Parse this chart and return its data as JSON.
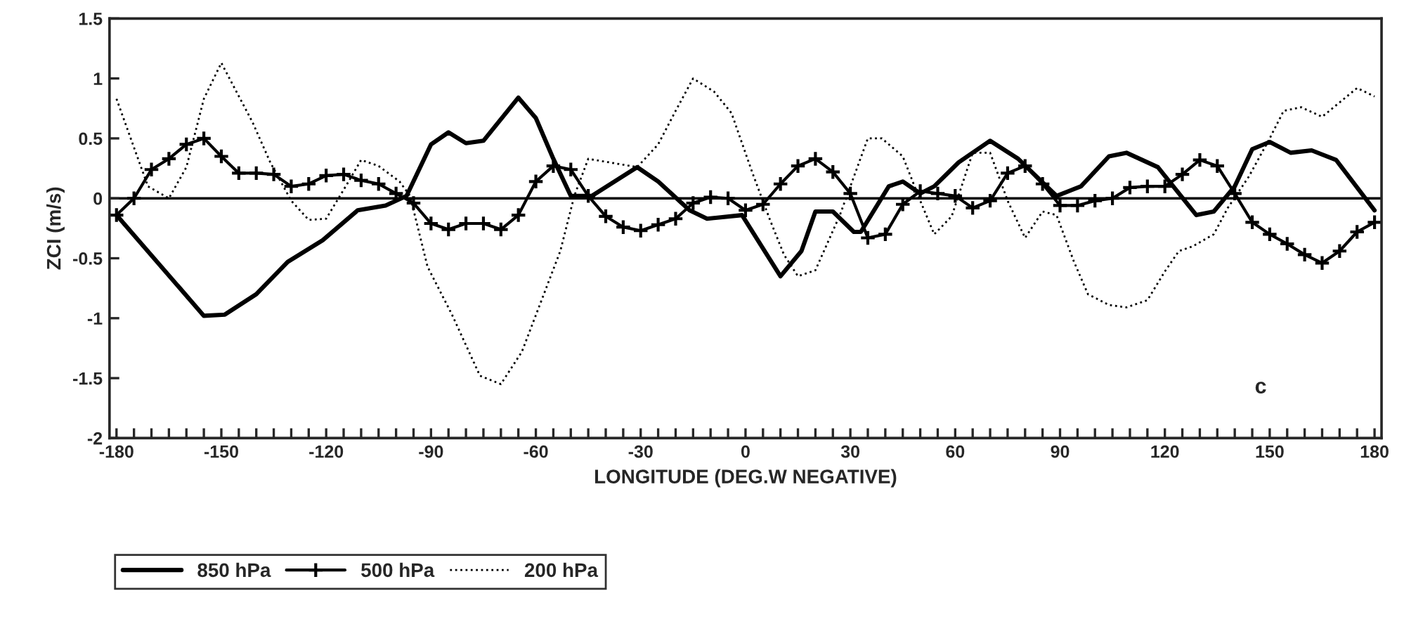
{
  "chart_data": {
    "type": "line",
    "xlabel": "LONGITUDE (DEG.W NEGATIVE)",
    "ylabel": "ZCI (m/s)",
    "xlim": [
      -182,
      182
    ],
    "ylim": [
      -2,
      1.5
    ],
    "xticks": [
      -180,
      {
        "value": -175,
        "label": null
      },
      {
        "value": -170,
        "label": null
      },
      {
        "value": -165,
        "label": null
      },
      {
        "value": -160,
        "label": null
      },
      {
        "value": -155,
        "label": null
      },
      -150,
      {
        "value": -145,
        "label": null
      },
      {
        "value": -140,
        "label": null
      },
      {
        "value": -135,
        "label": null
      },
      {
        "value": -130,
        "label": null
      },
      {
        "value": -125,
        "label": null
      },
      -120,
      {
        "value": -115,
        "label": null
      },
      {
        "value": -110,
        "label": null
      },
      {
        "value": -105,
        "label": null
      },
      {
        "value": -100,
        "label": null
      },
      {
        "value": -95,
        "label": null
      },
      -90,
      {
        "value": -85,
        "label": null
      },
      {
        "value": -80,
        "label": null
      },
      {
        "value": -75,
        "label": null
      },
      {
        "value": -70,
        "label": null
      },
      {
        "value": -65,
        "label": null
      },
      -60,
      {
        "value": -55,
        "label": null
      },
      {
        "value": -50,
        "label": null
      },
      {
        "value": -45,
        "label": null
      },
      {
        "value": -40,
        "label": null
      },
      {
        "value": -35,
        "label": null
      },
      -30,
      {
        "value": -25,
        "label": null
      },
      {
        "value": -20,
        "label": null
      },
      {
        "value": -15,
        "label": null
      },
      {
        "value": -10,
        "label": null
      },
      {
        "value": -5,
        "label": null
      },
      0,
      {
        "value": 5,
        "label": null
      },
      {
        "value": 10,
        "label": null
      },
      {
        "value": 15,
        "label": null
      },
      {
        "value": 20,
        "label": null
      },
      {
        "value": 25,
        "label": null
      },
      30,
      {
        "value": 35,
        "label": null
      },
      {
        "value": 40,
        "label": null
      },
      {
        "value": 45,
        "label": null
      },
      {
        "value": 50,
        "label": null
      },
      {
        "value": 55,
        "label": null
      },
      60,
      {
        "value": 65,
        "label": null
      },
      {
        "value": 70,
        "label": null
      },
      {
        "value": 75,
        "label": null
      },
      {
        "value": 80,
        "label": null
      },
      {
        "value": 85,
        "label": null
      },
      90,
      {
        "value": 95,
        "label": null
      },
      {
        "value": 100,
        "label": null
      },
      {
        "value": 105,
        "label": null
      },
      {
        "value": 110,
        "label": null
      },
      {
        "value": 115,
        "label": null
      },
      120,
      {
        "value": 125,
        "label": null
      },
      {
        "value": 130,
        "label": null
      },
      {
        "value": 135,
        "label": null
      },
      {
        "value": 140,
        "label": null
      },
      {
        "value": 145,
        "label": null
      },
      150,
      {
        "value": 155,
        "label": null
      },
      {
        "value": 160,
        "label": null
      },
      {
        "value": 165,
        "label": null
      },
      {
        "value": 170,
        "label": null
      },
      {
        "value": 175,
        "label": null
      },
      180
    ],
    "yticks": [
      -2,
      -1.5,
      -1,
      -0.5,
      0,
      0.5,
      1,
      1.5
    ],
    "grid": false,
    "legend": "bottom",
    "ref_lines": [
      {
        "axis": "y",
        "value": 0,
        "color": "#000000"
      }
    ],
    "annotations": [
      "c"
    ],
    "series": [
      {
        "name": "850 hPa",
        "color": "#000000",
        "line_style": "solid",
        "marker": "none",
        "x": [
          -180,
          -155,
          -149,
          -140,
          -131,
          -121,
          -111,
          -103,
          -97,
          -90,
          -85,
          -80,
          -75,
          -65,
          -60,
          -55,
          -50,
          -44,
          -31,
          -25,
          -16,
          -11,
          -1,
          10,
          16,
          20,
          25,
          31,
          33,
          41,
          45,
          50,
          54,
          61,
          70,
          78,
          89,
          96,
          104,
          109,
          118,
          129,
          134,
          140,
          145,
          150,
          156,
          162,
          169,
          180
        ],
        "values": [
          -0.14,
          -0.98,
          -0.97,
          -0.8,
          -0.53,
          -0.35,
          -0.1,
          -0.06,
          0.02,
          0.45,
          0.55,
          0.46,
          0.48,
          0.84,
          0.67,
          0.33,
          0.02,
          0.02,
          0.26,
          0.14,
          -0.1,
          -0.17,
          -0.14,
          -0.65,
          -0.44,
          -0.11,
          -0.11,
          -0.28,
          -0.28,
          0.1,
          0.14,
          0.04,
          0.1,
          0.3,
          0.48,
          0.33,
          0.02,
          0.1,
          0.35,
          0.38,
          0.26,
          -0.14,
          -0.11,
          0.1,
          0.41,
          0.47,
          0.38,
          0.4,
          0.32,
          -0.1
        ]
      },
      {
        "name": "500 hPa",
        "color": "#000000",
        "line_style": "solid",
        "marker": "cross",
        "x": [
          -180,
          -175,
          -170,
          -165,
          -160,
          -155,
          -150,
          -145,
          -140,
          -135,
          -130,
          -125,
          -120,
          -115,
          -110,
          -105,
          -100,
          -95,
          -90,
          -85,
          -80,
          -75,
          -70,
          -65,
          -60,
          -55,
          -50,
          -45,
          -40,
          -35,
          -30,
          -25,
          -20,
          -15,
          -10,
          -5,
          0,
          5,
          10,
          15,
          20,
          25,
          30,
          35,
          40,
          45,
          50,
          55,
          60,
          65,
          70,
          75,
          80,
          85,
          90,
          95,
          100,
          105,
          110,
          115,
          120,
          125,
          130,
          135,
          140,
          145,
          150,
          155,
          160,
          165,
          170,
          175,
          180
        ],
        "values": [
          -0.14,
          0.0,
          0.24,
          0.33,
          0.45,
          0.5,
          0.35,
          0.21,
          0.21,
          0.2,
          0.1,
          0.12,
          0.19,
          0.2,
          0.15,
          0.12,
          0.04,
          -0.04,
          -0.21,
          -0.26,
          -0.21,
          -0.21,
          -0.26,
          -0.14,
          0.14,
          0.27,
          0.24,
          0.02,
          -0.15,
          -0.24,
          -0.27,
          -0.22,
          -0.17,
          -0.04,
          0.01,
          0.0,
          -0.1,
          -0.05,
          0.12,
          0.27,
          0.33,
          0.22,
          0.04,
          -0.33,
          -0.3,
          -0.05,
          0.06,
          0.04,
          0.02,
          -0.08,
          -0.02,
          0.21,
          0.27,
          0.12,
          -0.06,
          -0.06,
          -0.02,
          0.0,
          0.09,
          0.1,
          0.1,
          0.2,
          0.32,
          0.27,
          0.04,
          -0.2,
          -0.3,
          -0.38,
          -0.47,
          -0.54,
          -0.44,
          -0.28,
          -0.2
        ]
      },
      {
        "name": "200 hPa",
        "color": "#000000",
        "line_style": "dotted",
        "marker": "none",
        "x": [
          -180,
          -171,
          -165,
          -160,
          -155,
          -150,
          -141,
          -136,
          -130,
          -125,
          -120,
          -114,
          -110,
          -105,
          -99,
          -96,
          -91,
          -84,
          -76,
          -70,
          -64,
          -53,
          -49,
          -45,
          -39,
          -31,
          -25,
          -20,
          -15,
          -9,
          -4,
          2,
          7,
          11,
          15,
          20,
          27,
          35,
          39,
          45,
          50,
          54,
          59,
          65,
          70,
          75,
          80,
          85,
          89,
          94,
          98,
          104,
          109,
          115,
          120,
          124,
          128,
          134,
          138,
          144,
          150,
          154,
          159,
          165,
          175,
          180
        ],
        "values": [
          0.83,
          0.1,
          0.0,
          0.26,
          0.83,
          1.13,
          0.63,
          0.3,
          -0.02,
          -0.18,
          -0.17,
          0.12,
          0.32,
          0.27,
          0.14,
          0.02,
          -0.57,
          -0.97,
          -1.48,
          -1.55,
          -1.28,
          -0.44,
          0.02,
          0.33,
          0.3,
          0.26,
          0.45,
          0.73,
          1.0,
          0.89,
          0.71,
          0.21,
          -0.18,
          -0.47,
          -0.65,
          -0.6,
          -0.14,
          0.5,
          0.5,
          0.35,
          -0.02,
          -0.3,
          -0.15,
          0.38,
          0.38,
          -0.02,
          -0.33,
          -0.11,
          -0.14,
          -0.53,
          -0.8,
          -0.89,
          -0.91,
          -0.85,
          -0.61,
          -0.44,
          -0.4,
          -0.3,
          -0.08,
          0.18,
          0.5,
          0.73,
          0.76,
          0.68,
          0.92,
          0.85
        ]
      }
    ]
  }
}
